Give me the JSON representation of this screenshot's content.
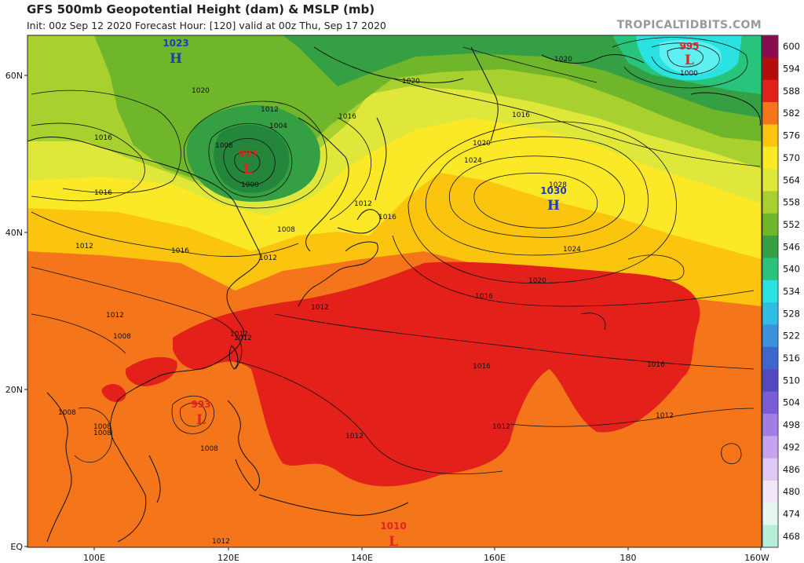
{
  "header": {
    "title": "GFS 500mb Geopotential Height (dam) & MSLP (mb)",
    "subtitle": "Init: 00z Sep 12 2020   Forecast Hour: [120]   valid at 00z Thu, Sep 17 2020",
    "brand": "TROPICALTIDBITS.COM"
  },
  "axes": {
    "lat_labels": [
      "60N",
      "40N",
      "20N",
      "EQ"
    ],
    "lon_labels": [
      "100E",
      "120E",
      "140E",
      "160E",
      "180",
      "160W"
    ]
  },
  "colorbar": {
    "levels": [
      "600",
      "594",
      "588",
      "582",
      "576",
      "570",
      "564",
      "558",
      "552",
      "546",
      "540",
      "534",
      "528",
      "522",
      "516",
      "510",
      "504",
      "498",
      "492",
      "486",
      "480",
      "474",
      "468"
    ],
    "colors": [
      "#8a0a50",
      "#b50c0c",
      "#e3201a",
      "#f5761a",
      "#fac40f",
      "#fbe826",
      "#dfe83a",
      "#a8d02e",
      "#6fb62a",
      "#34a043",
      "#29c47c",
      "#2ae2e2",
      "#2fbde4",
      "#3c91de",
      "#3e66d0",
      "#5447c2",
      "#7a5cd8",
      "#a17ee6",
      "#c6a3ee",
      "#e0c8f4",
      "#f2e6fa",
      "#e6f7f2",
      "#b6f0d8"
    ]
  },
  "centers": [
    {
      "type": "H",
      "value": "1023"
    },
    {
      "type": "L",
      "value": "997"
    },
    {
      "type": "H",
      "value": "1030"
    },
    {
      "type": "L",
      "value": "995"
    },
    {
      "type": "L",
      "value": "993"
    },
    {
      "type": "L",
      "value": "1010"
    }
  ],
  "isobar_labels": [
    "1020",
    "1020",
    "1016",
    "1016",
    "1020",
    "1012",
    "1004",
    "1008",
    "1000",
    "1016",
    "1012",
    "1016",
    "1008",
    "1012",
    "1012",
    "1012",
    "1008",
    "1008",
    "1008",
    "1008",
    "1008",
    "1012",
    "1012",
    "1012",
    "1016",
    "1016",
    "1016",
    "1016",
    "1020",
    "1024",
    "1028",
    "1024",
    "1020",
    "1012",
    "1016",
    "1012",
    "1012",
    "1000",
    "1012"
  ]
}
